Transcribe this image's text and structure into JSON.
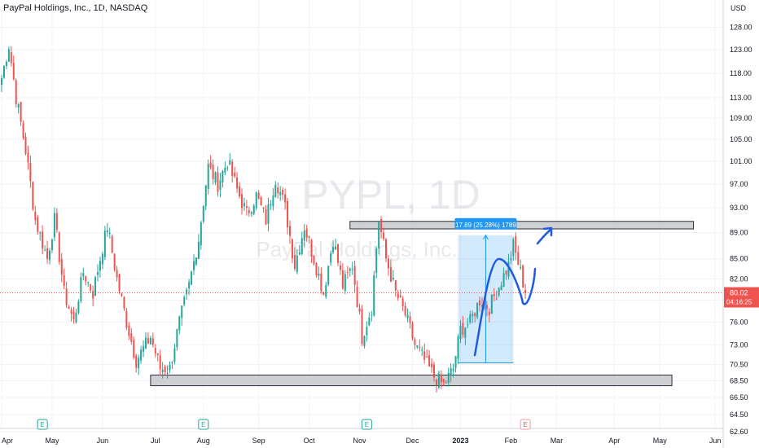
{
  "header": {
    "title": "PayPal Holdings, Inc., 1D, NASDAQ",
    "currency": "USD"
  },
  "watermark": {
    "symbol": "PYPL, 1D",
    "company": "PayPal Holdings, Inc."
  },
  "price_tag": {
    "price": "80.02",
    "countdown": "04:16:25",
    "value": 80.02
  },
  "measure": {
    "label": "17.89 (25.28%) 1789"
  },
  "colors": {
    "up": "#26a69a",
    "down": "#ef5350",
    "price_line": "#ef5350",
    "zone_fill": "#b9bcc1",
    "measure_fill": "#2196f3",
    "drawing": "#1e5be0"
  },
  "chart_data": {
    "type": "candlestick",
    "title": "PayPal Holdings, Inc., 1D, NASDAQ",
    "y_axis": {
      "scale": "log",
      "ylim": [
        62.6,
        132
      ],
      "ticks": [
        {
          "value": 128,
          "label": "128.00"
        },
        {
          "value": 123,
          "label": "123.00"
        },
        {
          "value": 118,
          "label": "118.00"
        },
        {
          "value": 113,
          "label": "113.00"
        },
        {
          "value": 109,
          "label": "109.00"
        },
        {
          "value": 105,
          "label": "105.00"
        },
        {
          "value": 101,
          "label": "101.00"
        },
        {
          "value": 97,
          "label": "97.00"
        },
        {
          "value": 93,
          "label": "93.00"
        },
        {
          "value": 89,
          "label": "89.00"
        },
        {
          "value": 85,
          "label": "85.00"
        },
        {
          "value": 82,
          "label": "82.00"
        },
        {
          "value": 79,
          "label": "79.00"
        },
        {
          "value": 76,
          "label": "76.00"
        },
        {
          "value": 73,
          "label": "73.00"
        },
        {
          "value": 70.5,
          "label": "70.50"
        },
        {
          "value": 68.5,
          "label": "68.50"
        },
        {
          "value": 66.5,
          "label": "66.50"
        },
        {
          "value": 64.5,
          "label": "64.50"
        },
        {
          "value": 62.6,
          "label": "62.60"
        }
      ]
    },
    "x_axis": {
      "labels": [
        {
          "label": "Apr",
          "bar": 0
        },
        {
          "label": "May",
          "bar": 21
        },
        {
          "label": "Jun",
          "bar": 42
        },
        {
          "label": "Jul",
          "bar": 64
        },
        {
          "label": "Aug",
          "bar": 84
        },
        {
          "label": "Sep",
          "bar": 107
        },
        {
          "label": "Oct",
          "bar": 128
        },
        {
          "label": "Nov",
          "bar": 149
        },
        {
          "label": "Dec",
          "bar": 171
        },
        {
          "label": "2023",
          "bar": 191
        },
        {
          "label": "Feb",
          "bar": 212
        },
        {
          "label": "Mar",
          "bar": 231
        },
        {
          "label": "Apr",
          "bar": 255
        },
        {
          "label": "May",
          "bar": 274
        },
        {
          "label": "Jun",
          "bar": 297
        }
      ]
    },
    "grid": true,
    "anchors": [
      {
        "bar": 0,
        "price": 117
      },
      {
        "bar": 3,
        "price": 124
      },
      {
        "bar": 6,
        "price": 113
      },
      {
        "bar": 10,
        "price": 103
      },
      {
        "bar": 14,
        "price": 91
      },
      {
        "bar": 19,
        "price": 85
      },
      {
        "bar": 22,
        "price": 91
      },
      {
        "bar": 26,
        "price": 80
      },
      {
        "bar": 30,
        "price": 76
      },
      {
        "bar": 34,
        "price": 83
      },
      {
        "bar": 38,
        "price": 80
      },
      {
        "bar": 44,
        "price": 90
      },
      {
        "bar": 48,
        "price": 82
      },
      {
        "bar": 52,
        "price": 76
      },
      {
        "bar": 56,
        "price": 71
      },
      {
        "bar": 62,
        "price": 74
      },
      {
        "bar": 66,
        "price": 70
      },
      {
        "bar": 70,
        "price": 70
      },
      {
        "bar": 74,
        "price": 76
      },
      {
        "bar": 78,
        "price": 81
      },
      {
        "bar": 82,
        "price": 88
      },
      {
        "bar": 86,
        "price": 100
      },
      {
        "bar": 90,
        "price": 97
      },
      {
        "bar": 94,
        "price": 101
      },
      {
        "bar": 98,
        "price": 96
      },
      {
        "bar": 102,
        "price": 92
      },
      {
        "bar": 106,
        "price": 95
      },
      {
        "bar": 110,
        "price": 91
      },
      {
        "bar": 114,
        "price": 98
      },
      {
        "bar": 118,
        "price": 93
      },
      {
        "bar": 122,
        "price": 84
      },
      {
        "bar": 126,
        "price": 90
      },
      {
        "bar": 130,
        "price": 85
      },
      {
        "bar": 134,
        "price": 80
      },
      {
        "bar": 138,
        "price": 88
      },
      {
        "bar": 142,
        "price": 81
      },
      {
        "bar": 146,
        "price": 84
      },
      {
        "bar": 150,
        "price": 74
      },
      {
        "bar": 154,
        "price": 78
      },
      {
        "bar": 157,
        "price": 91
      },
      {
        "bar": 160,
        "price": 85
      },
      {
        "bar": 164,
        "price": 80
      },
      {
        "bar": 168,
        "price": 77
      },
      {
        "bar": 172,
        "price": 73
      },
      {
        "bar": 176,
        "price": 71
      },
      {
        "bar": 180,
        "price": 69
      },
      {
        "bar": 184,
        "price": 68
      },
      {
        "bar": 188,
        "price": 70
      },
      {
        "bar": 191,
        "price": 75
      },
      {
        "bar": 195,
        "price": 76
      },
      {
        "bar": 199,
        "price": 79
      },
      {
        "bar": 203,
        "price": 78
      },
      {
        "bar": 207,
        "price": 81
      },
      {
        "bar": 211,
        "price": 84
      },
      {
        "bar": 213,
        "price": 87
      },
      {
        "bar": 216,
        "price": 83
      },
      {
        "bar": 218,
        "price": 80
      }
    ],
    "zones": [
      {
        "name": "resistance",
        "x0_bar": 145,
        "x1_bar": 288,
        "top": 90.8,
        "bottom": 89.6
      },
      {
        "name": "support",
        "x0_bar": 62,
        "x1_bar": 279,
        "top": 69.2,
        "bottom": 67.9
      }
    ],
    "measure_range": {
      "x0_bar": 190,
      "x1_bar": 213,
      "top": 88.6,
      "bottom": 70.7
    },
    "current_price": 80.02,
    "earnings_markers": [
      {
        "label": "E",
        "bar": 17
      },
      {
        "label": "E",
        "bar": 84
      },
      {
        "label": "E",
        "bar": 152
      },
      {
        "label": "E",
        "bar": 218,
        "future": true
      }
    ]
  }
}
